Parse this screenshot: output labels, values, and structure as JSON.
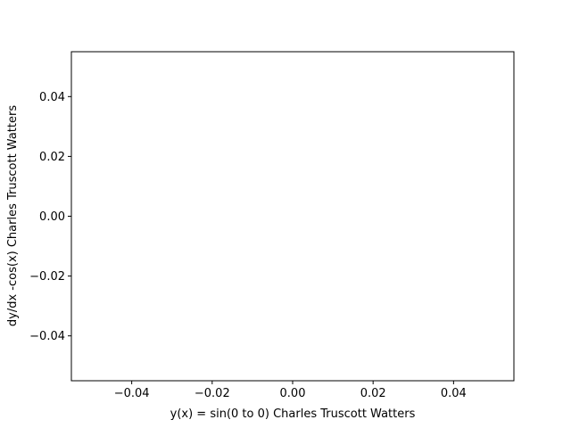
{
  "chart_data": {
    "type": "line",
    "title": "",
    "xlabel": "y(x) = sin(0 to 0) Charles Truscott Watters",
    "ylabel": "dy/dx -cos(x) Charles Truscott Watters",
    "xlim": [
      -0.055,
      0.055
    ],
    "ylim": [
      -0.055,
      0.055
    ],
    "x_ticks": [
      -0.04,
      -0.02,
      0.0,
      0.02,
      0.04
    ],
    "y_ticks": [
      -0.04,
      -0.02,
      0.0,
      0.02,
      0.04
    ],
    "x_tick_labels": [
      "−0.04",
      "−0.02",
      "0.00",
      "0.02",
      "0.04"
    ],
    "y_tick_labels": [
      "−0.04",
      "−0.02",
      "0.00",
      "0.02",
      "0.04"
    ],
    "series": [],
    "grid": false,
    "legend": "none"
  },
  "colors": {
    "axes_edge": "#000000",
    "background": "#ffffff"
  }
}
